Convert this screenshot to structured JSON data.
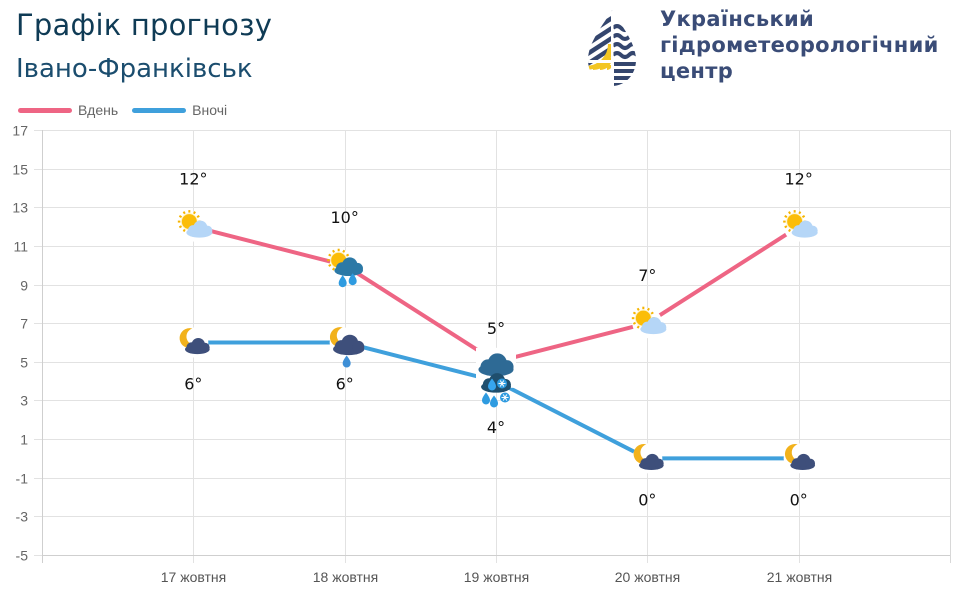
{
  "header": {
    "title": "Графік прогнозу",
    "city": "Івано-Франківськ"
  },
  "organization": {
    "line1": "Український",
    "line2": "гідрометеорологічний",
    "line3": "центр"
  },
  "legend": [
    {
      "label": "Вдень",
      "color": "#ee6584"
    },
    {
      "label": "Вночі",
      "color": "#3fa0dc"
    }
  ],
  "chart_data": {
    "type": "line",
    "title": "Графік прогнозу",
    "categories": [
      "17 жовтня",
      "18 жовтня",
      "19 жовтня",
      "20 жовтня",
      "21 жовтня"
    ],
    "ylim": [
      -5,
      17
    ],
    "yticks": [
      17,
      15,
      13,
      11,
      9,
      7,
      5,
      3,
      1,
      -1,
      -3,
      -5
    ],
    "grid": true,
    "legend_position": "top-left",
    "series": [
      {
        "name": "Вдень",
        "color": "#ee6584",
        "values": [
          12,
          10,
          5,
          7,
          12
        ],
        "labels": [
          "12°",
          "10°",
          "5°",
          "7°",
          "12°"
        ],
        "icons": [
          "sun-cloud-icon",
          "sun-rain-cloud-icon",
          "rain-snow-cloud-icon",
          "sun-cloud-icon",
          "sun-cloud-icon"
        ]
      },
      {
        "name": "Вночі",
        "color": "#3fa0dc",
        "values": [
          6,
          6,
          4,
          0,
          0
        ],
        "labels": [
          "6°",
          "6°",
          "4°",
          "0°",
          "0°"
        ],
        "icons": [
          "moon-cloud-icon",
          "moon-rain-cloud-icon",
          "rain-snow-cloud-icon",
          "moon-cloud-icon",
          "moon-cloud-icon"
        ]
      }
    ]
  }
}
